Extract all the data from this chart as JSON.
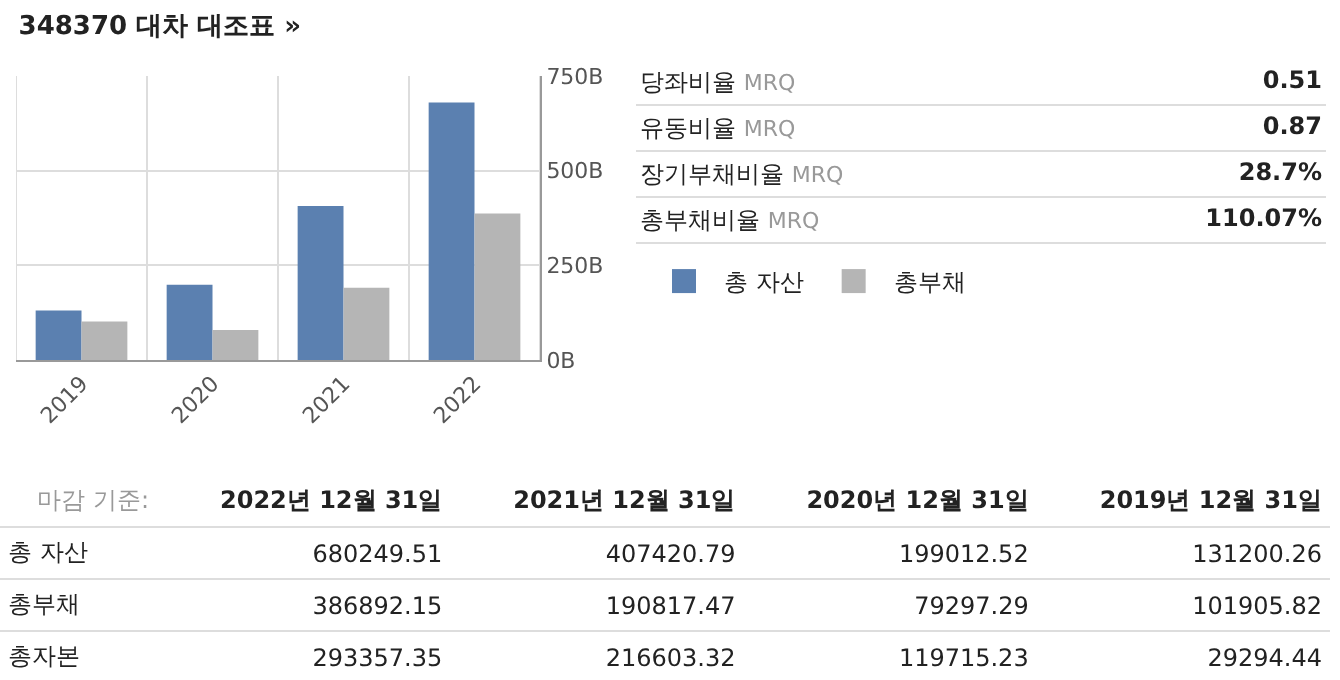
{
  "chart_data": [
    {
      "type": "bar",
      "title": "348370 대차 대조표 »",
      "categories": [
        "2019",
        "2020",
        "2021",
        "2022"
      ],
      "series": [
        {
          "name": "총 자산",
          "color": "#5b80b0",
          "values": [
            131,
            199,
            407,
            680
          ]
        },
        {
          "name": "총부채",
          "color": "#b5b5b5",
          "values": [
            102,
            79,
            191,
            387
          ]
        }
      ],
      "ylim": [
        0,
        750
      ],
      "yticks": [
        {
          "value": 0,
          "label": "0B"
        },
        {
          "value": 250,
          "label": "250B"
        },
        {
          "value": 500,
          "label": "500B"
        },
        {
          "value": 750,
          "label": "750B"
        }
      ],
      "grid": true,
      "legend": "right"
    },
    {
      "type": "other",
      "categories": [
        "당좌비율 MRQ",
        "유동비율 MRQ",
        "장기부채비율 MRQ",
        "총부채비율 MRQ"
      ],
      "value_labels": [
        "0.51",
        "0.87",
        "28.7%",
        "110.07%"
      ]
    },
    {
      "type": "other",
      "categories": [
        "2022년 12월 31일",
        "2021년 12월 31일",
        "2020년 12월 31일",
        "2019년 12월 31일"
      ],
      "series": [
        {
          "name": "총 자산",
          "values": [
            680249.51,
            407420.79,
            199012.52,
            131200.26
          ]
        },
        {
          "name": "총부채",
          "values": [
            386892.15,
            190817.47,
            79297.29,
            101905.82
          ]
        },
        {
          "name": "총자본",
          "values": [
            293357.35,
            216603.32,
            119715.23,
            29294.44
          ]
        }
      ],
      "data_labels": true,
      "annotations": [
        "마감 기준:"
      ]
    }
  ]
}
